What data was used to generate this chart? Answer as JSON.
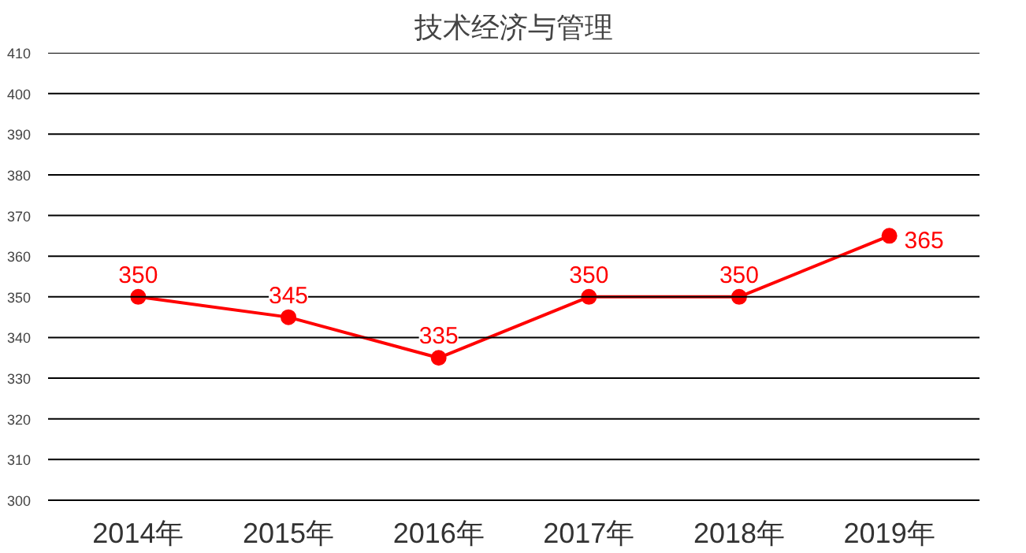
{
  "chart_data": {
    "type": "line",
    "title": "技术经济与管理",
    "categories": [
      "2014年",
      "2015年",
      "2016年",
      "2017年",
      "2018年",
      "2019年"
    ],
    "series": [
      {
        "color": "#ff0000",
        "values": [
          350,
          345,
          335,
          350,
          350,
          365
        ]
      }
    ],
    "ylim": [
      300,
      410
    ],
    "yticks": [
      300,
      310,
      320,
      330,
      340,
      350,
      360,
      370,
      380,
      390,
      400,
      410
    ],
    "grid": "y",
    "marker": "circle",
    "line_style": "solid",
    "data_labels": true
  }
}
